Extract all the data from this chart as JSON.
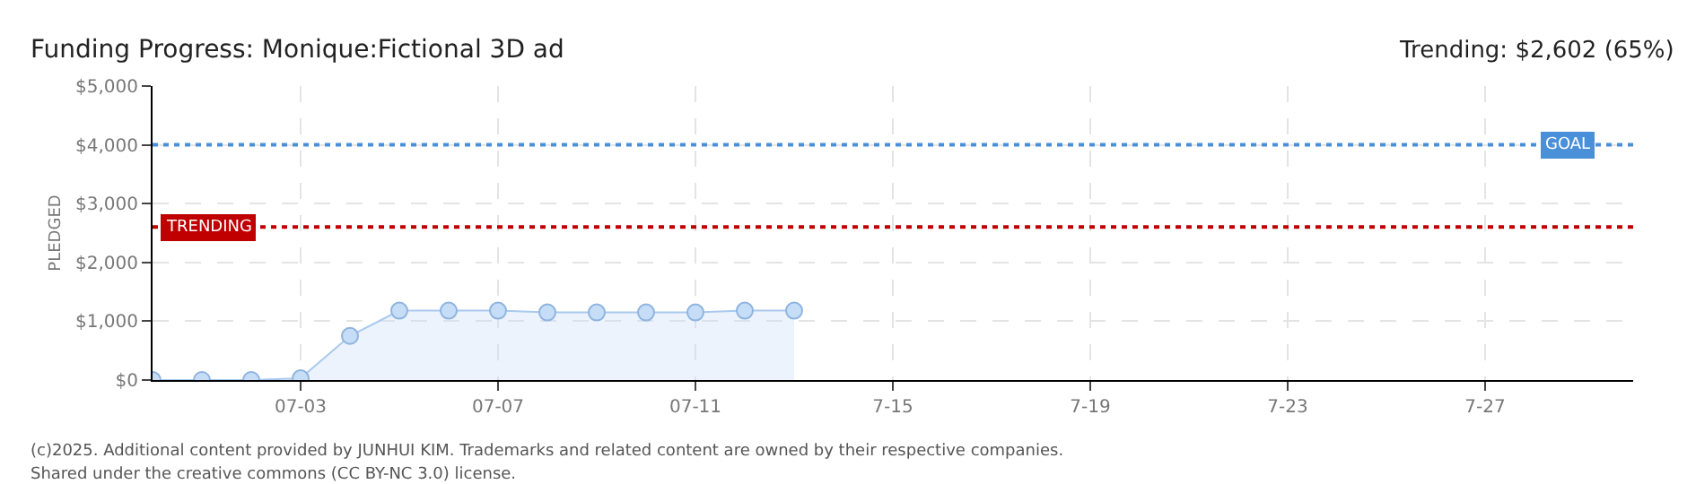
{
  "chart_data": {
    "type": "area",
    "title": "Funding Progress: Monique:Fictional 3D ad",
    "subtitle": "Trending: $2,602 (65%)",
    "ylabel": "PLEDGED",
    "x": [
      "2025-06-30",
      "2025-07-01",
      "2025-07-02",
      "2025-07-03",
      "2025-07-04",
      "2025-07-05",
      "2025-07-06",
      "2025-07-07",
      "2025-07-08",
      "2025-07-09",
      "2025-07-10",
      "2025-07-11",
      "2025-07-12",
      "2025-07-13"
    ],
    "series": [
      {
        "color": "#a9c9ee",
        "values": [
          0,
          0,
          0,
          30,
          750,
          1180,
          1180,
          1180,
          1150,
          1150,
          1150,
          1150,
          1180,
          1180
        ]
      }
    ],
    "marker": "circle",
    "xlim": [
      "2025-06-30",
      "2025-07-30"
    ],
    "xticks": [
      {
        "value": "2025-07-03",
        "label": "07-03"
      },
      {
        "value": "2025-07-07",
        "label": "07-07"
      },
      {
        "value": "2025-07-11",
        "label": "07-11"
      },
      {
        "value": "2025-07-15",
        "label": "7-15"
      },
      {
        "value": "2025-07-19",
        "label": "7-19"
      },
      {
        "value": "2025-07-23",
        "label": "7-23"
      },
      {
        "value": "2025-07-27",
        "label": "7-27"
      }
    ],
    "ylim": [
      0,
      5000
    ],
    "yticks": [
      {
        "value": 0,
        "label": "$0"
      },
      {
        "value": 1000,
        "label": "$1,000"
      },
      {
        "value": 2000,
        "label": "$2,000"
      },
      {
        "value": 3000,
        "label": "$3,000"
      },
      {
        "value": 4000,
        "label": "$4,000"
      },
      {
        "value": 5000,
        "label": "$5,000"
      }
    ],
    "grid": true,
    "ref_lines": [
      {
        "axis": "y",
        "value": 4000,
        "label": "GOAL",
        "color": "#4a90d9",
        "line_style": "dotted"
      },
      {
        "axis": "y",
        "value": 2602,
        "label": "TRENDING",
        "color": "#c00000",
        "line_style": "dotted"
      }
    ],
    "annotations": [
      "(c)2025. Additional content provided by JUNHUI KIM. Trademarks and related content are owned by their respective companies.",
      "Shared under the creative commons (CC BY-NC 3.0) license."
    ]
  }
}
